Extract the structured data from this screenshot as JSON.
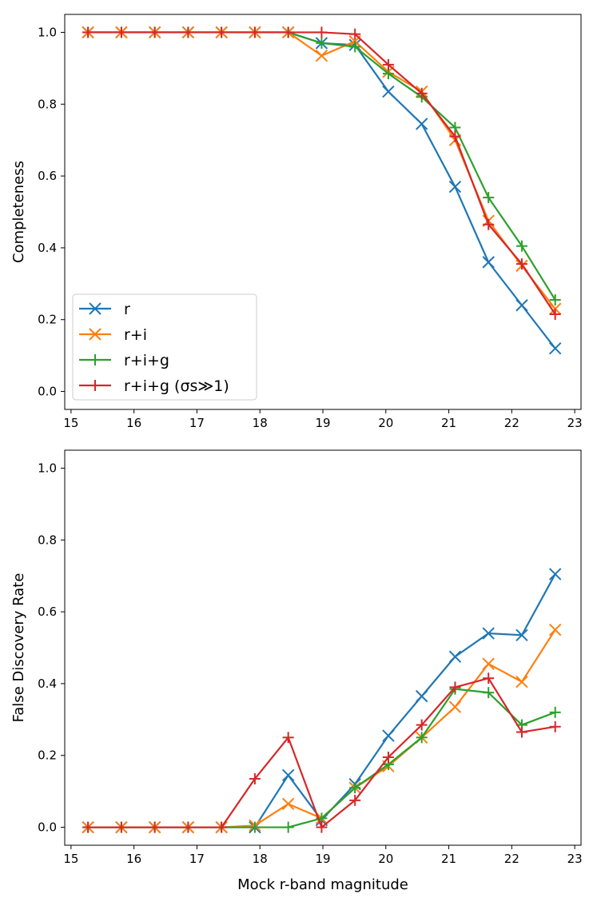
{
  "chart_data": [
    {
      "type": "line",
      "xlim": [
        14.9,
        23.1
      ],
      "ylim": [
        -0.05,
        1.05
      ],
      "xticks": [
        "15",
        "16",
        "17",
        "18",
        "19",
        "20",
        "21",
        "22",
        "23"
      ],
      "yticks": [
        "0.0",
        "0.2",
        "0.4",
        "0.6",
        "0.8",
        "1.0"
      ],
      "xlabel": "",
      "ylabel": "Completeness",
      "legend": {
        "placement": "lower-left"
      },
      "x": [
        15.27,
        15.8,
        16.33,
        16.86,
        17.39,
        17.92,
        18.45,
        18.98,
        19.51,
        20.04,
        20.57,
        21.1,
        21.63,
        22.16,
        22.69
      ],
      "series": [
        {
          "name": "r",
          "color": "#1f77b4",
          "marker": "x",
          "values": [
            1.0,
            1.0,
            1.0,
            1.0,
            1.0,
            1.0,
            1.0,
            0.97,
            0.965,
            0.835,
            0.745,
            0.57,
            0.36,
            0.24,
            0.12
          ]
        },
        {
          "name": "r+i",
          "color": "#ff7f0e",
          "marker": "x",
          "values": [
            1.0,
            1.0,
            1.0,
            1.0,
            1.0,
            1.0,
            1.0,
            0.935,
            0.975,
            0.89,
            0.835,
            0.7,
            0.475,
            0.35,
            0.23
          ]
        },
        {
          "name": "r+i+g",
          "color": "#2ca02c",
          "marker": "+",
          "values": [
            1.0,
            1.0,
            1.0,
            1.0,
            1.0,
            1.0,
            1.0,
            0.97,
            0.96,
            0.885,
            0.82,
            0.735,
            0.54,
            0.405,
            0.255
          ]
        },
        {
          "name": "r+i+g (σs≫1)",
          "color": "#d62728",
          "marker": "+",
          "values": [
            1.0,
            1.0,
            1.0,
            1.0,
            1.0,
            1.0,
            1.0,
            1.0,
            0.995,
            0.91,
            0.83,
            0.71,
            0.465,
            0.355,
            0.215
          ]
        }
      ]
    },
    {
      "type": "line",
      "xlim": [
        14.9,
        23.1
      ],
      "ylim": [
        -0.05,
        1.05
      ],
      "xticks": [
        "15",
        "16",
        "17",
        "18",
        "19",
        "20",
        "21",
        "22",
        "23"
      ],
      "yticks": [
        "0.0",
        "0.2",
        "0.4",
        "0.6",
        "0.8",
        "1.0"
      ],
      "xlabel": "Mock r-band magnitude",
      "ylabel": "False Discovery Rate",
      "x": [
        15.27,
        15.8,
        16.33,
        16.86,
        17.39,
        17.92,
        18.45,
        18.98,
        19.51,
        20.04,
        20.57,
        21.1,
        21.63,
        22.16,
        22.69
      ],
      "series": [
        {
          "name": "r",
          "color": "#1f77b4",
          "marker": "x",
          "values": [
            0.0,
            0.0,
            0.0,
            0.0,
            0.0,
            0.0,
            0.145,
            0.02,
            0.12,
            0.255,
            0.365,
            0.475,
            0.54,
            0.535,
            0.705
          ]
        },
        {
          "name": "r+i",
          "color": "#ff7f0e",
          "marker": "x",
          "values": [
            0.0,
            0.0,
            0.0,
            0.0,
            0.0,
            0.005,
            0.065,
            0.025,
            0.11,
            0.17,
            0.25,
            0.335,
            0.455,
            0.405,
            0.55
          ]
        },
        {
          "name": "r+i+g",
          "color": "#2ca02c",
          "marker": "+",
          "values": [
            0.0,
            0.0,
            0.0,
            0.0,
            0.0,
            0.0,
            0.0,
            0.025,
            0.11,
            0.175,
            0.25,
            0.385,
            0.375,
            0.285,
            0.32
          ]
        },
        {
          "name": "r+i+g (σs≫1)",
          "color": "#d62728",
          "marker": "+",
          "values": [
            0.0,
            0.0,
            0.0,
            0.0,
            0.0,
            0.135,
            0.25,
            0.0,
            0.075,
            0.195,
            0.285,
            0.39,
            0.415,
            0.265,
            0.28
          ]
        }
      ]
    }
  ]
}
